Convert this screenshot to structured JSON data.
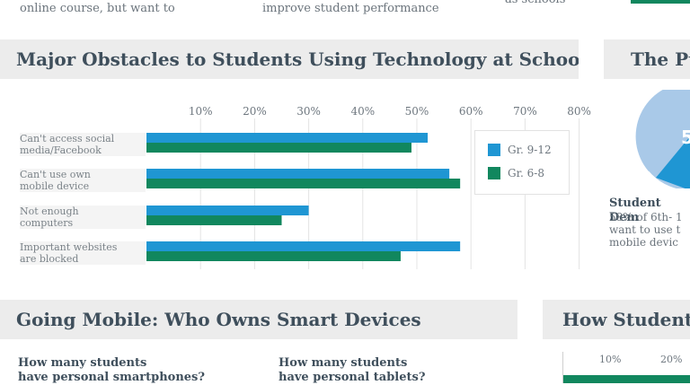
{
  "top": {
    "frag1": "online course, but want to",
    "frag2": "improve student performance",
    "frag3": "as schools"
  },
  "sections": {
    "obstacles_title": "Major Obstacles to Students Using Technology at School",
    "pu_title": "The Pu",
    "mobile_title": "Going Mobile: Who Owns Smart Devices",
    "how_title": "How Students"
  },
  "side": {
    "pie_center": "5",
    "demand_title": "Student Dem",
    "demand_l1": "58% of 6th- 1",
    "demand_l2": "want to use t",
    "demand_l3": "mobile devic"
  },
  "mobile": {
    "q1_l1": "How many students",
    "q1_l2": "have personal smartphones?",
    "q2_l1": "How many students",
    "q2_l2": "have personal tablets?"
  },
  "how_axis": [
    "10%",
    "20%"
  ],
  "colors": {
    "gr912": "#1f96d3",
    "gr68": "#11875e",
    "title_bg": "#ececec"
  },
  "chart_data": {
    "type": "bar",
    "orientation": "horizontal",
    "title": "Major Obstacles to Students Using Technology at School",
    "categories": [
      [
        "Can't access social",
        "media/Facebook"
      ],
      [
        "Can't use own",
        "mobile device"
      ],
      [
        "Not enough",
        "computers"
      ],
      [
        "Important websites",
        "are blocked"
      ]
    ],
    "series": [
      {
        "name": "Gr. 9-12",
        "values": [
          52,
          56,
          30,
          58
        ]
      },
      {
        "name": "Gr. 6-8",
        "values": [
          49,
          58,
          25,
          47
        ]
      }
    ],
    "xticks": [
      "10%",
      "20%",
      "30%",
      "40%",
      "50%",
      "60%",
      "70%",
      "80%"
    ],
    "xlim": [
      0,
      80
    ],
    "grid": true,
    "legend": "right"
  }
}
